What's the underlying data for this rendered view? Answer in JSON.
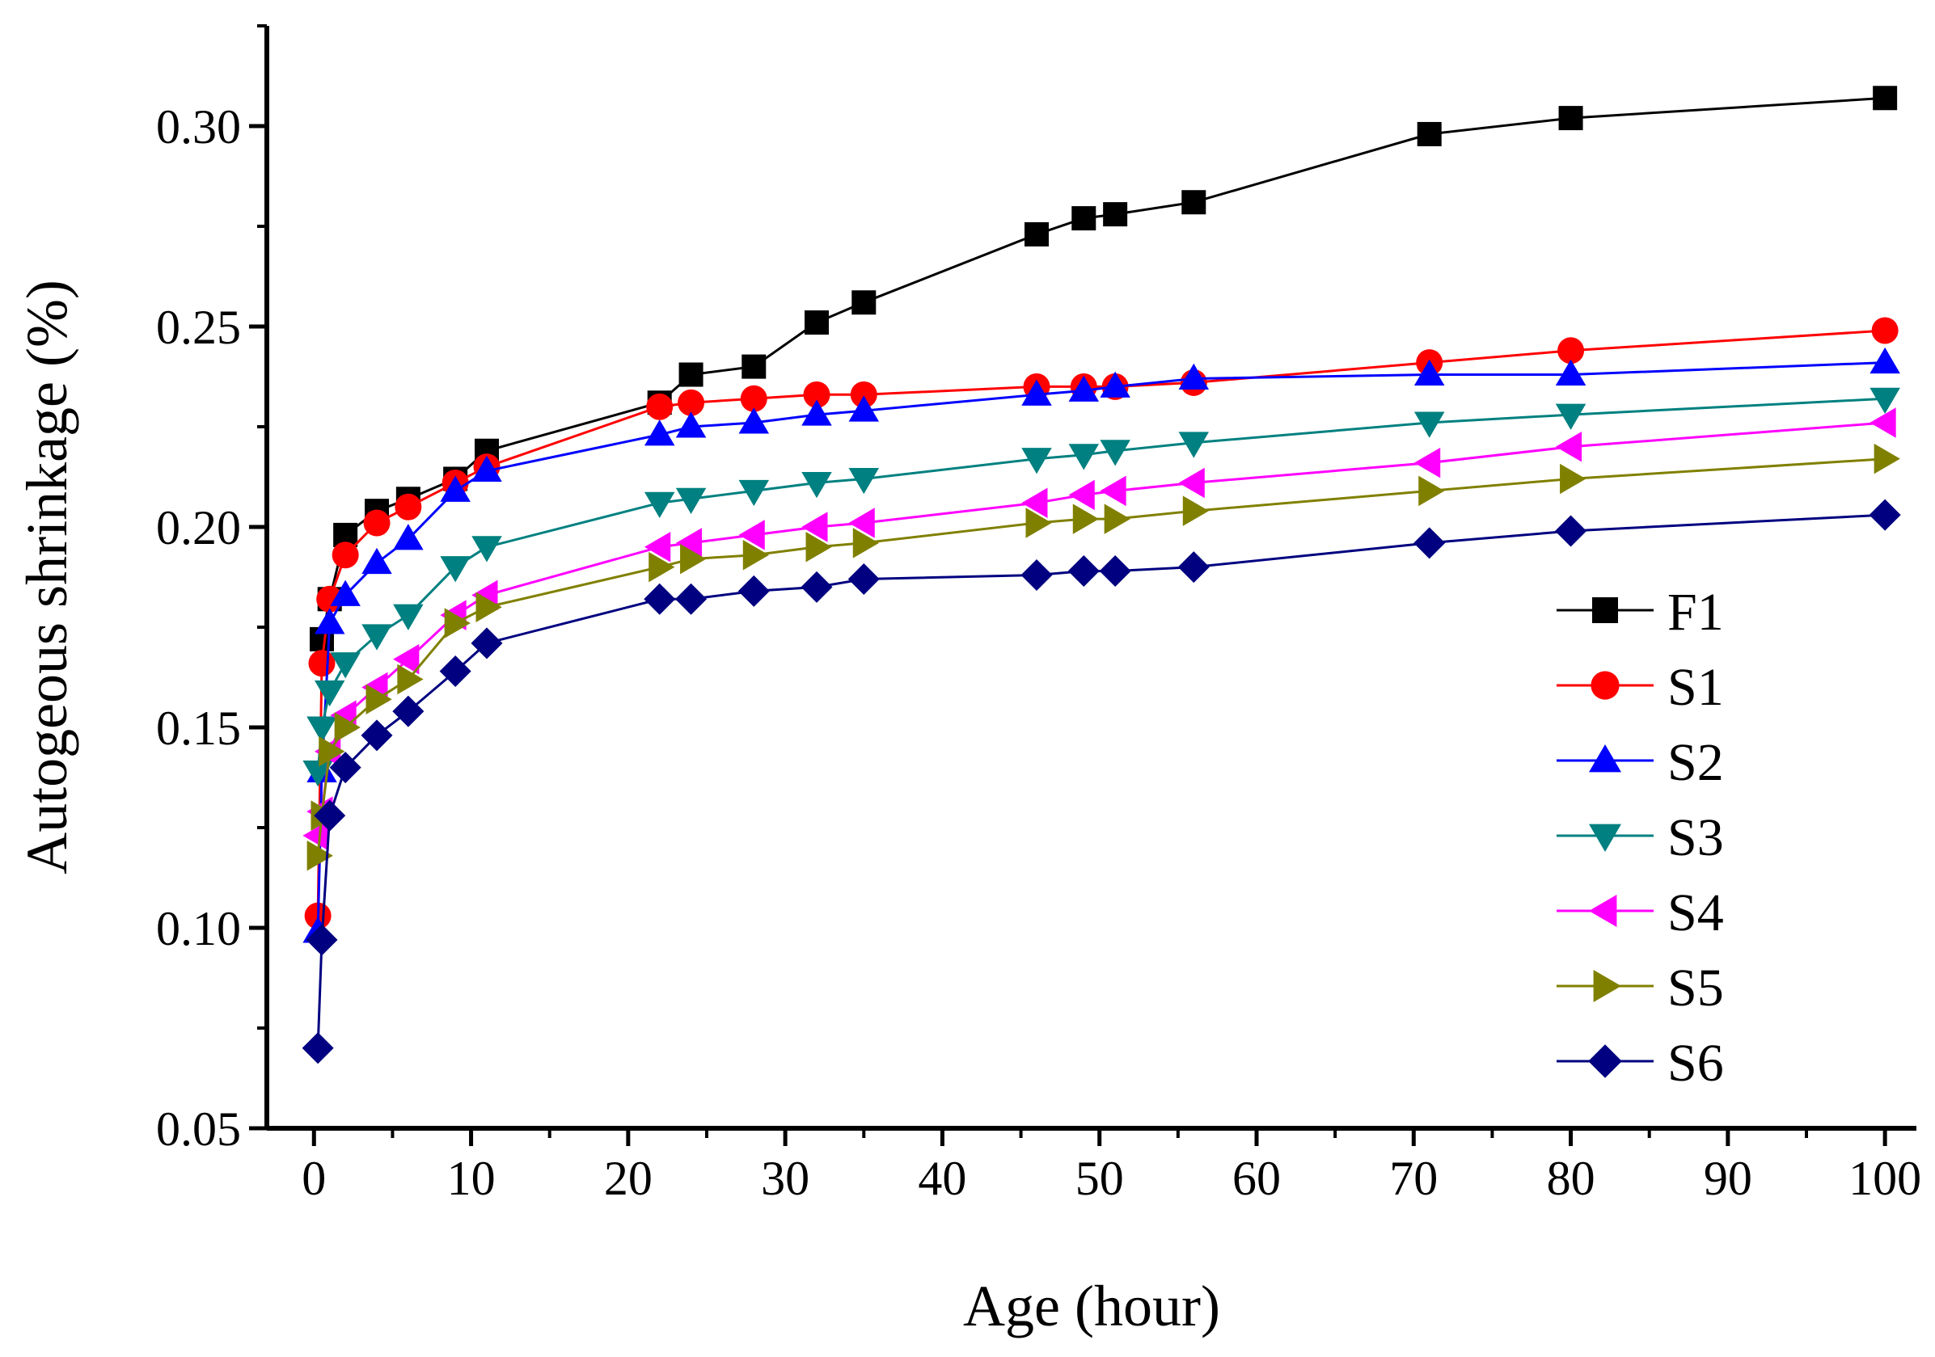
{
  "chart_data": {
    "type": "line",
    "xlabel": "Age (hour)",
    "ylabel": "Autogeous shrinkage (%)",
    "xlim": [
      -3,
      102
    ],
    "ylim": [
      0.05,
      0.325
    ],
    "xticks": [
      0,
      10,
      20,
      30,
      40,
      50,
      60,
      70,
      80,
      90,
      100
    ],
    "xtick_labels": [
      "0",
      "10",
      "20",
      "30",
      "40",
      "50",
      "60",
      "70",
      "80",
      "90",
      "100"
    ],
    "yticks": [
      0.05,
      0.1,
      0.15,
      0.2,
      0.25,
      0.3
    ],
    "ytick_labels": [
      "0.05",
      "0.10",
      "0.15",
      "0.20",
      "0.25",
      "0.30"
    ],
    "grid": false,
    "legend_position": "right",
    "series": [
      {
        "name": "F1",
        "marker": "square",
        "color": "#000000",
        "x": [
          0.5,
          1,
          2,
          4,
          6,
          9,
          11,
          22,
          24,
          28,
          32,
          35,
          46,
          49,
          51,
          56,
          71,
          80,
          100
        ],
        "y": [
          0.172,
          0.182,
          0.198,
          0.204,
          0.207,
          0.212,
          0.219,
          0.231,
          0.238,
          0.24,
          0.251,
          0.256,
          0.273,
          0.277,
          0.278,
          0.281,
          0.298,
          0.302,
          0.307
        ]
      },
      {
        "name": "S1",
        "marker": "circle",
        "color": "#ff0000",
        "x": [
          0.25,
          0.5,
          1,
          2,
          4,
          6,
          9,
          11,
          22,
          24,
          28,
          32,
          35,
          46,
          49,
          51,
          56,
          71,
          80,
          100
        ],
        "y": [
          0.103,
          0.166,
          0.182,
          0.193,
          0.201,
          0.205,
          0.211,
          0.215,
          0.23,
          0.231,
          0.232,
          0.233,
          0.233,
          0.235,
          0.235,
          0.235,
          0.236,
          0.241,
          0.244,
          0.249
        ]
      },
      {
        "name": "S2",
        "marker": "triangle-up",
        "color": "#0000ff",
        "x": [
          0.25,
          0.5,
          1,
          2,
          4,
          6,
          9,
          11,
          22,
          24,
          28,
          32,
          35,
          46,
          49,
          51,
          56,
          71,
          80,
          100
        ],
        "y": [
          0.099,
          0.139,
          0.176,
          0.183,
          0.191,
          0.197,
          0.209,
          0.214,
          0.223,
          0.225,
          0.226,
          0.228,
          0.229,
          0.233,
          0.234,
          0.235,
          0.237,
          0.238,
          0.238,
          0.241
        ]
      },
      {
        "name": "S3",
        "marker": "triangle-down",
        "color": "#008080",
        "x": [
          0.25,
          0.5,
          1,
          2,
          4,
          6,
          9,
          11,
          22,
          24,
          28,
          32,
          35,
          46,
          49,
          51,
          56,
          71,
          80,
          100
        ],
        "y": [
          0.139,
          0.15,
          0.159,
          0.166,
          0.173,
          0.178,
          0.19,
          0.195,
          0.206,
          0.207,
          0.209,
          0.211,
          0.212,
          0.217,
          0.218,
          0.219,
          0.221,
          0.226,
          0.228,
          0.232
        ]
      },
      {
        "name": "S4",
        "marker": "triangle-left",
        "color": "#ff00ff",
        "x": [
          0.25,
          0.5,
          1,
          2,
          4,
          6,
          9,
          11,
          22,
          24,
          28,
          32,
          35,
          46,
          49,
          51,
          56,
          71,
          80,
          100
        ],
        "y": [
          0.123,
          0.129,
          0.144,
          0.153,
          0.16,
          0.167,
          0.178,
          0.183,
          0.195,
          0.196,
          0.198,
          0.2,
          0.201,
          0.206,
          0.208,
          0.209,
          0.211,
          0.216,
          0.22,
          0.226
        ]
      },
      {
        "name": "S5",
        "marker": "triangle-right",
        "color": "#808000",
        "x": [
          0.25,
          0.5,
          1,
          2,
          4,
          6,
          9,
          11,
          22,
          24,
          28,
          32,
          35,
          46,
          49,
          51,
          56,
          71,
          80,
          100
        ],
        "y": [
          0.118,
          0.128,
          0.144,
          0.15,
          0.157,
          0.162,
          0.176,
          0.18,
          0.19,
          0.192,
          0.193,
          0.195,
          0.196,
          0.201,
          0.202,
          0.202,
          0.204,
          0.209,
          0.212,
          0.217
        ]
      },
      {
        "name": "S6",
        "marker": "diamond",
        "color": "#000080",
        "x": [
          0.25,
          0.5,
          1,
          2,
          4,
          6,
          9,
          11,
          22,
          24,
          28,
          32,
          35,
          46,
          49,
          51,
          56,
          71,
          80,
          100
        ],
        "y": [
          0.07,
          0.097,
          0.128,
          0.14,
          0.148,
          0.154,
          0.164,
          0.171,
          0.182,
          0.182,
          0.184,
          0.185,
          0.187,
          0.188,
          0.189,
          0.189,
          0.19,
          0.196,
          0.199,
          0.203
        ]
      }
    ]
  }
}
